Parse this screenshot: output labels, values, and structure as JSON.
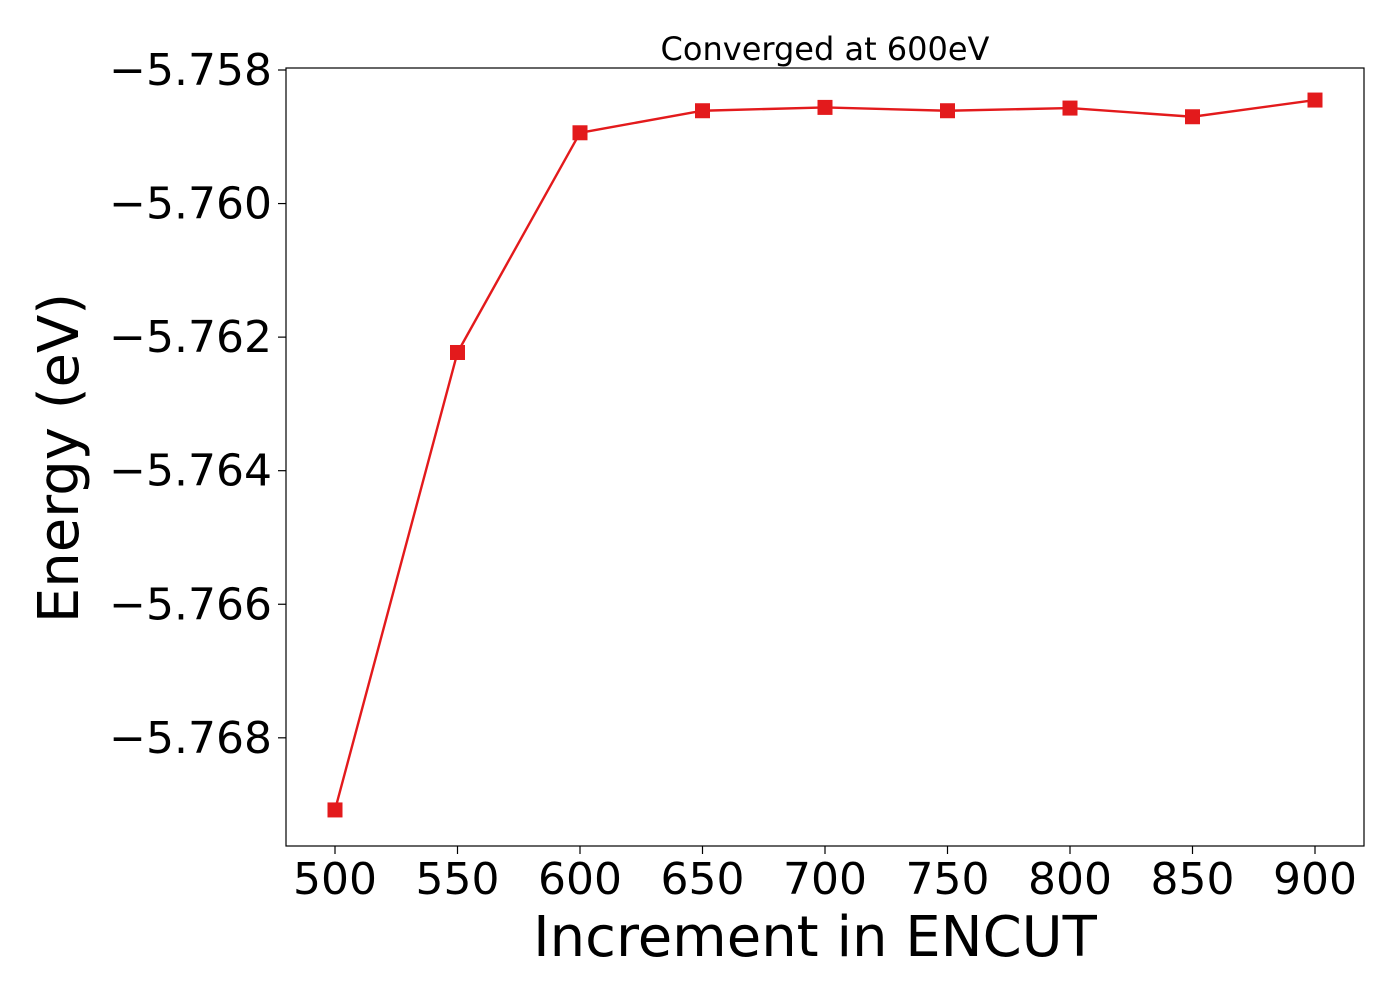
{
  "chart_data": {
    "type": "line",
    "title": "Converged at 600eV",
    "xlabel": "Increment in ENCUT",
    "ylabel": "Energy (eV)",
    "x": [
      500,
      550,
      600,
      650,
      700,
      750,
      800,
      850,
      900
    ],
    "series": [
      {
        "values": [
          -5.76908,
          -5.76223,
          -5.75894,
          -5.75861,
          -5.75856,
          -5.75861,
          -5.75857,
          -5.7587,
          -5.75845
        ],
        "color": "#e31a1c",
        "marker": "square"
      }
    ],
    "xlim": [
      480,
      920
    ],
    "ylim": [
      -5.76962,
      -5.75797
    ],
    "xticks": [
      500,
      550,
      600,
      650,
      700,
      750,
      800,
      850,
      900
    ],
    "yticks": [
      -5.768,
      -5.766,
      -5.764,
      -5.762,
      -5.76,
      -5.758
    ],
    "ytick_labels": [
      "−5.768",
      "−5.766",
      "−5.764",
      "−5.762",
      "−5.760",
      "−5.758"
    ],
    "grid": false,
    "legend": "none"
  }
}
